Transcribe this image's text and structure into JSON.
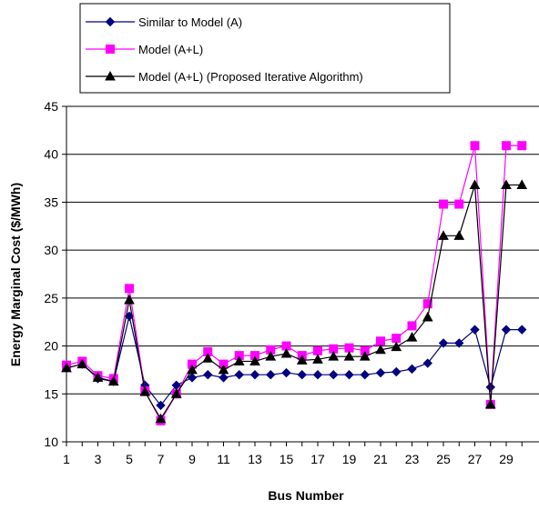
{
  "chart_data": {
    "type": "line",
    "title": "",
    "xlabel": "Bus Number",
    "ylabel": "Energy Marginal Cost  ($/MWh)",
    "ylim": [
      10,
      45
    ],
    "y_ticks": [
      10,
      15,
      20,
      25,
      30,
      35,
      40,
      45
    ],
    "x": [
      1,
      2,
      3,
      4,
      5,
      6,
      7,
      8,
      9,
      10,
      11,
      12,
      13,
      14,
      15,
      16,
      17,
      18,
      19,
      20,
      21,
      22,
      23,
      24,
      25,
      26,
      27,
      28,
      29,
      30
    ],
    "x_tick_labels": [
      "1",
      "3",
      "5",
      "7",
      "9",
      "11",
      "13",
      "15",
      "17",
      "19",
      "21",
      "23",
      "25",
      "27",
      "29"
    ],
    "x_tick_values": [
      1,
      3,
      5,
      7,
      9,
      11,
      13,
      15,
      17,
      19,
      21,
      23,
      25,
      27,
      29
    ],
    "grid": "horizontal",
    "legend_position": "top",
    "series": [
      {
        "name": "Similar to  Model (A)",
        "color": "#000080",
        "marker": "diamond",
        "values": [
          17.7,
          18.1,
          16.6,
          16.3,
          23.1,
          15.9,
          13.8,
          15.9,
          16.7,
          17.0,
          16.7,
          17.0,
          17.0,
          17.0,
          17.2,
          17.0,
          17.0,
          17.0,
          17.0,
          17.0,
          17.2,
          17.3,
          17.6,
          18.2,
          20.3,
          20.3,
          21.7,
          15.7,
          21.7,
          21.7
        ]
      },
      {
        "name": "Model (A+L)",
        "color": "#ff00ff",
        "marker": "square",
        "values": [
          18.0,
          18.4,
          16.9,
          16.6,
          26.0,
          15.3,
          12.2,
          15.0,
          18.1,
          19.4,
          18.1,
          19.0,
          19.0,
          19.6,
          20.0,
          19.0,
          19.5,
          19.7,
          19.8,
          19.5,
          20.5,
          20.8,
          22.1,
          24.4,
          34.8,
          34.8,
          40.9,
          13.9,
          40.9,
          40.9
        ]
      },
      {
        "name": "Model (A+L) (Proposed Iterative Algorithm)",
        "color": "#000000",
        "marker": "triangle",
        "values": [
          17.7,
          18.1,
          16.7,
          16.3,
          24.8,
          15.2,
          12.4,
          15.0,
          17.5,
          18.7,
          17.5,
          18.4,
          18.4,
          18.9,
          19.2,
          18.5,
          18.6,
          18.9,
          18.9,
          18.9,
          19.6,
          19.9,
          20.9,
          23.0,
          31.5,
          31.5,
          36.8,
          13.9,
          36.8,
          36.8
        ]
      }
    ]
  }
}
